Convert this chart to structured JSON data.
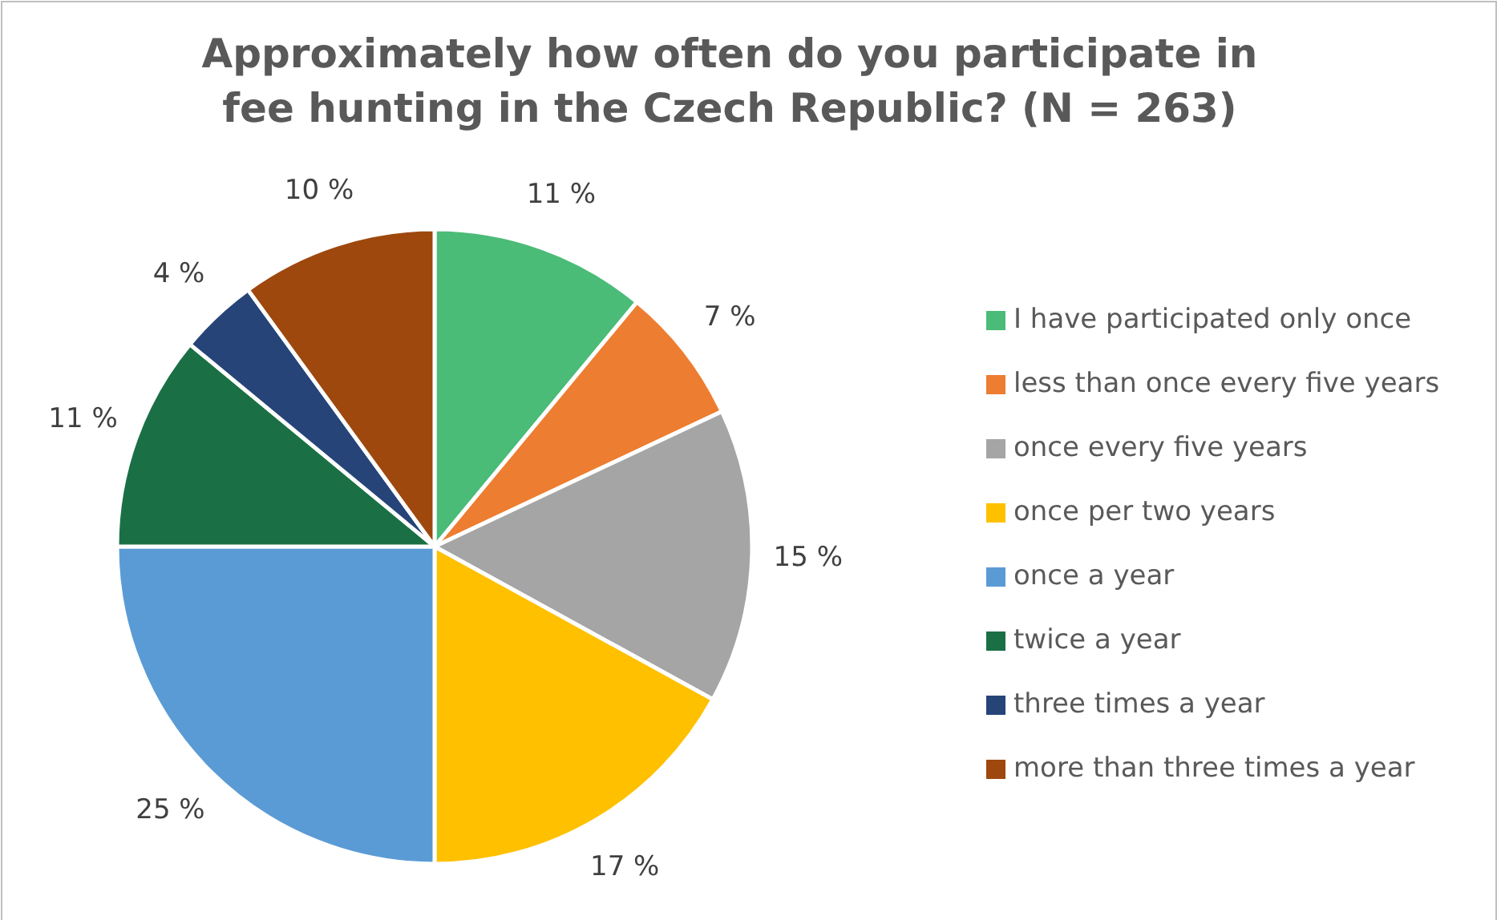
{
  "chart_data": {
    "type": "pie",
    "title": "Approximately how often do you participate in fee hunting in the Czech Republic? (N = 263)",
    "categories": [
      "I have participated only once",
      "less than once every five years",
      "once every five years",
      "once per two years",
      "once a year",
      "twice a year",
      "three times a year",
      "more than three times a year"
    ],
    "values": [
      11,
      7,
      15,
      17,
      25,
      11,
      4,
      10
    ],
    "colors": [
      "#4bbb78",
      "#ed7d31",
      "#a5a5a5",
      "#ffc000",
      "#5b9bd5",
      "#1a7044",
      "#264478",
      "#9e480e"
    ],
    "value_labels": [
      "11 %",
      "7 %",
      "15 %",
      "17 %",
      "25 %",
      "11 %",
      "4 %",
      "10 %"
    ],
    "legend": "right"
  }
}
